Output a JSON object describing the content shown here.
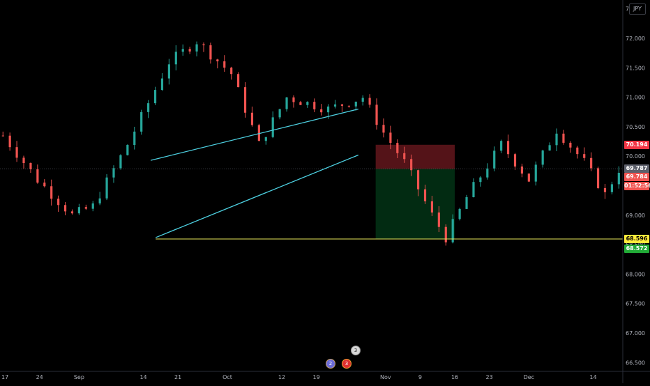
{
  "symbol_panel": {
    "currency": "JPY"
  },
  "chart_data": {
    "type": "candlestick",
    "y_ticks": [
      "72.500",
      "72.000",
      "71.500",
      "71.000",
      "70.500",
      "70.000",
      "69.500",
      "69.000",
      "68.500",
      "68.000",
      "67.500",
      "67.000",
      "66.500"
    ],
    "y_tick_values": [
      72.5,
      72.0,
      71.5,
      71.0,
      70.5,
      70.0,
      69.5,
      69.0,
      68.5,
      68.0,
      67.5,
      67.0,
      66.5
    ],
    "ylim": [
      66.35,
      72.65
    ],
    "x_ticks": [
      "17",
      "24",
      "Sep",
      "14",
      "21",
      "Oct",
      "12",
      "19",
      "Nov",
      "9",
      "16",
      "23",
      "Dec",
      "14"
    ],
    "x_tick_day_offsets": [
      0,
      7,
      15,
      28,
      35,
      45,
      56,
      63,
      77,
      84,
      91,
      98,
      106,
      119
    ],
    "x_range_days": [
      -1,
      125
    ],
    "candle_count": 90,
    "price_path": [
      {
        "bar": 0,
        "price": 70.35
      },
      {
        "bar": 5,
        "price": 69.6
      },
      {
        "bar": 10,
        "price": 69.0
      },
      {
        "bar": 13,
        "price": 69.15
      },
      {
        "bar": 18,
        "price": 70.2
      },
      {
        "bar": 24,
        "price": 71.6
      },
      {
        "bar": 28,
        "price": 71.95
      },
      {
        "bar": 33,
        "price": 71.4
      },
      {
        "bar": 37,
        "price": 70.2
      },
      {
        "bar": 41,
        "price": 71.0
      },
      {
        "bar": 47,
        "price": 70.8
      },
      {
        "bar": 52,
        "price": 71.0
      },
      {
        "bar": 55,
        "price": 70.4
      },
      {
        "bar": 58,
        "price": 69.9
      },
      {
        "bar": 62,
        "price": 69.0
      },
      {
        "bar": 64,
        "price": 68.62
      },
      {
        "bar": 67,
        "price": 69.3
      },
      {
        "bar": 72,
        "price": 70.2
      },
      {
        "bar": 76,
        "price": 69.6
      },
      {
        "bar": 80,
        "price": 70.45
      },
      {
        "bar": 84,
        "price": 69.9
      },
      {
        "bar": 87,
        "price": 69.35
      },
      {
        "bar": 89,
        "price": 69.78
      }
    ],
    "colors": {
      "up": "#26a69a",
      "down": "#ef5350",
      "trendline": "#4dd0e1",
      "target_line": "#e6e65a"
    },
    "annotations": {
      "rising_wedge_upper": [
        {
          "day": 29.5,
          "price": 69.93
        },
        {
          "day": 71.5,
          "price": 70.8
        }
      ],
      "rising_wedge_lower": [
        {
          "day": 30.5,
          "price": 68.62
        },
        {
          "day": 71.5,
          "price": 70.02
        }
      ],
      "target_horizontal": {
        "from_day": 30.5,
        "price": 68.596
      },
      "short_position": {
        "from_day": 75,
        "to_day": 91,
        "entry": 69.784,
        "stop": 70.194,
        "target": 68.596
      }
    },
    "price_labels": {
      "stop": {
        "text": "70.194",
        "price": 70.194,
        "color": "#f23645"
      },
      "last_close": {
        "text": "69.787",
        "price": 69.787,
        "color": "#5d606b"
      },
      "entry": {
        "text": "69.784",
        "price": 69.784,
        "color": "#ef5350"
      },
      "countdown": {
        "text": "01:52:56",
        "color": "#ef5350"
      },
      "target": {
        "text": "68.596",
        "price": 68.596,
        "color": "#ffeb3b"
      },
      "target_alt": {
        "text": "68.572",
        "price": 68.572,
        "color": "#22ab37"
      }
    },
    "events": [
      {
        "text": "3"
      },
      {
        "text": "2"
      },
      {
        "text": "3"
      }
    ]
  }
}
